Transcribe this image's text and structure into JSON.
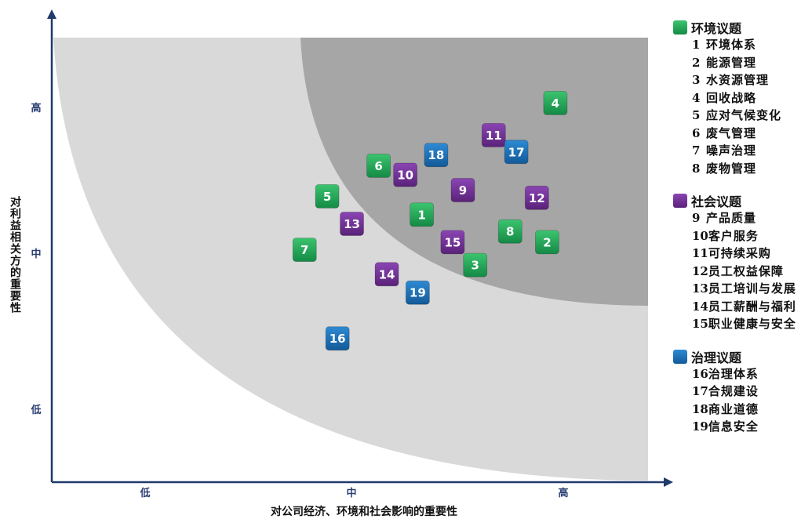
{
  "chart_data": {
    "type": "scatter",
    "x_label": "对公司经济、环境和社会影响的重要性",
    "y_label": "对利益相关方的重要性",
    "x_ticks": [
      "低",
      "中",
      "高"
    ],
    "y_ticks": [
      "高",
      "中",
      "低"
    ],
    "xlim": [
      0,
      3
    ],
    "ylim": [
      0,
      3
    ],
    "categories": [
      {
        "key": "env",
        "name": "环境议题",
        "color": "#1fa65a"
      },
      {
        "key": "soc",
        "name": "社会议题",
        "color": "#6b2c91"
      },
      {
        "key": "gov",
        "name": "治理议题",
        "color": "#1a6fb5"
      }
    ],
    "points": [
      {
        "id": "1",
        "category": "env",
        "x": 1.8,
        "y": 1.75
      },
      {
        "id": "2",
        "category": "env",
        "x": 2.41,
        "y": 1.57
      },
      {
        "id": "3",
        "category": "env",
        "x": 2.06,
        "y": 1.42
      },
      {
        "id": "4",
        "category": "env",
        "x": 2.45,
        "y": 2.48
      },
      {
        "id": "5",
        "category": "env",
        "x": 1.34,
        "y": 1.87
      },
      {
        "id": "6",
        "category": "env",
        "x": 1.59,
        "y": 2.07
      },
      {
        "id": "7",
        "category": "env",
        "x": 1.23,
        "y": 1.52
      },
      {
        "id": "8",
        "category": "env",
        "x": 2.23,
        "y": 1.64
      },
      {
        "id": "9",
        "category": "soc",
        "x": 2.0,
        "y": 1.91
      },
      {
        "id": "10",
        "category": "soc",
        "x": 1.72,
        "y": 2.01
      },
      {
        "id": "11",
        "category": "soc",
        "x": 2.15,
        "y": 2.27
      },
      {
        "id": "12",
        "category": "soc",
        "x": 2.36,
        "y": 1.86
      },
      {
        "id": "13",
        "category": "soc",
        "x": 1.46,
        "y": 1.69
      },
      {
        "id": "14",
        "category": "soc",
        "x": 1.63,
        "y": 1.36
      },
      {
        "id": "15",
        "category": "soc",
        "x": 1.95,
        "y": 1.57
      },
      {
        "id": "16",
        "category": "gov",
        "x": 1.39,
        "y": 0.94
      },
      {
        "id": "17",
        "category": "gov",
        "x": 2.26,
        "y": 2.16
      },
      {
        "id": "18",
        "category": "gov",
        "x": 1.87,
        "y": 2.14
      },
      {
        "id": "19",
        "category": "gov",
        "x": 1.78,
        "y": 1.24
      }
    ]
  },
  "legend": {
    "env": {
      "title": "环境议题",
      "items": [
        {
          "num": "1",
          "label": "环境体系"
        },
        {
          "num": "2",
          "label": "能源管理"
        },
        {
          "num": "3",
          "label": "水资源管理"
        },
        {
          "num": "4",
          "label": "回收战略"
        },
        {
          "num": "5",
          "label": "应对气候变化"
        },
        {
          "num": "6",
          "label": "废气管理"
        },
        {
          "num": "7",
          "label": "噪声治理"
        },
        {
          "num": "8",
          "label": "废物管理"
        }
      ]
    },
    "soc": {
      "title": "社会议题",
      "items": [
        {
          "num": "9",
          "label": "产品质量"
        },
        {
          "num": "10",
          "label": "客户服务"
        },
        {
          "num": "11",
          "label": "可持续采购"
        },
        {
          "num": "12",
          "label": "员工权益保障"
        },
        {
          "num": "13",
          "label": "员工培训与发展"
        },
        {
          "num": "14",
          "label": "员工薪酬与福利"
        },
        {
          "num": "15",
          "label": "职业健康与安全"
        }
      ]
    },
    "gov": {
      "title": "治理议题",
      "items": [
        {
          "num": "16",
          "label": "治理体系"
        },
        {
          "num": "17",
          "label": "合规建设"
        },
        {
          "num": "18",
          "label": "商业道德"
        },
        {
          "num": "19",
          "label": "信息安全"
        }
      ]
    }
  }
}
